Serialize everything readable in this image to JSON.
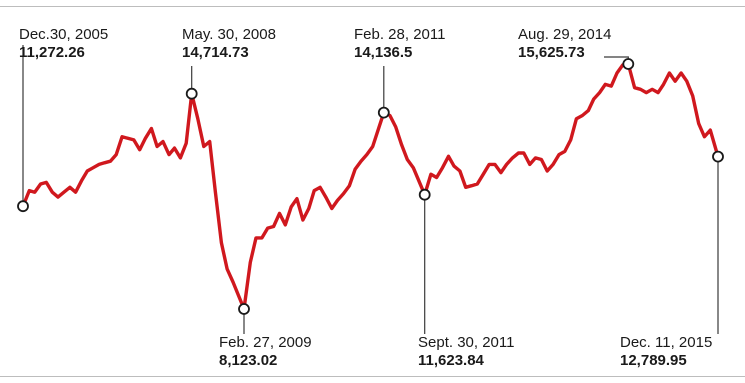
{
  "chart_data": {
    "type": "line",
    "title": "",
    "xlabel": "",
    "ylabel": "",
    "x_range": [
      "2005-12-30",
      "2015-12-11"
    ],
    "grid": false,
    "series": [
      {
        "color": "#d0181e",
        "points": [
          [
            "2005-12-30",
            11272.26
          ],
          [
            "2006-02-01",
            11750
          ],
          [
            "2006-03-01",
            11700
          ],
          [
            "2006-04-01",
            11950
          ],
          [
            "2006-05-01",
            12000
          ],
          [
            "2006-06-01",
            11700
          ],
          [
            "2006-07-01",
            11550
          ],
          [
            "2006-08-01",
            11700
          ],
          [
            "2006-09-01",
            11850
          ],
          [
            "2006-10-01",
            11700
          ],
          [
            "2006-11-01",
            12050
          ],
          [
            "2006-12-01",
            12350
          ],
          [
            "2007-01-01",
            12450
          ],
          [
            "2007-02-01",
            12550
          ],
          [
            "2007-03-01",
            12600
          ],
          [
            "2007-04-01",
            12650
          ],
          [
            "2007-05-01",
            12850
          ],
          [
            "2007-06-01",
            13400
          ],
          [
            "2007-07-01",
            13350
          ],
          [
            "2007-08-01",
            13300
          ],
          [
            "2007-09-01",
            13000
          ],
          [
            "2007-10-01",
            13350
          ],
          [
            "2007-11-01",
            13650
          ],
          [
            "2007-12-01",
            13100
          ],
          [
            "2008-01-01",
            13250
          ],
          [
            "2008-02-01",
            12850
          ],
          [
            "2008-03-01",
            13050
          ],
          [
            "2008-04-01",
            12750
          ],
          [
            "2008-05-01",
            13200
          ],
          [
            "2008-05-30",
            14714.73
          ],
          [
            "2008-07-01",
            13950
          ],
          [
            "2008-08-01",
            13100
          ],
          [
            "2008-09-01",
            13250
          ],
          [
            "2008-10-01",
            11700
          ],
          [
            "2008-11-01",
            10150
          ],
          [
            "2008-12-01",
            9350
          ],
          [
            "2009-01-01",
            8950
          ],
          [
            "2009-02-27",
            8123.02
          ],
          [
            "2009-04-01",
            9550
          ],
          [
            "2009-05-01",
            10300
          ],
          [
            "2009-06-01",
            10300
          ],
          [
            "2009-07-01",
            10600
          ],
          [
            "2009-08-01",
            10650
          ],
          [
            "2009-09-01",
            11050
          ],
          [
            "2009-10-01",
            10700
          ],
          [
            "2009-11-01",
            11250
          ],
          [
            "2009-12-01",
            11500
          ],
          [
            "2010-01-01",
            10850
          ],
          [
            "2010-02-01",
            11200
          ],
          [
            "2010-03-01",
            11750
          ],
          [
            "2010-04-01",
            11850
          ],
          [
            "2010-05-01",
            11550
          ],
          [
            "2010-06-01",
            11200
          ],
          [
            "2010-07-01",
            11450
          ],
          [
            "2010-08-01",
            11650
          ],
          [
            "2010-09-01",
            11900
          ],
          [
            "2010-10-01",
            12400
          ],
          [
            "2010-11-01",
            12650
          ],
          [
            "2010-12-01",
            12850
          ],
          [
            "2011-01-01",
            13100
          ],
          [
            "2011-02-28",
            14136.5
          ],
          [
            "2011-04-01",
            14050
          ],
          [
            "2011-05-01",
            13700
          ],
          [
            "2011-06-01",
            13150
          ],
          [
            "2011-07-01",
            12700
          ],
          [
            "2011-08-01",
            12450
          ],
          [
            "2011-09-30",
            11623.84
          ],
          [
            "2011-11-01",
            12250
          ],
          [
            "2011-12-01",
            12150
          ],
          [
            "2012-01-01",
            12450
          ],
          [
            "2012-02-01",
            12800
          ],
          [
            "2012-03-01",
            12500
          ],
          [
            "2012-04-01",
            12350
          ],
          [
            "2012-05-01",
            11850
          ],
          [
            "2012-06-01",
            11900
          ],
          [
            "2012-07-01",
            11950
          ],
          [
            "2012-08-01",
            12250
          ],
          [
            "2012-09-01",
            12550
          ],
          [
            "2012-10-01",
            12550
          ],
          [
            "2012-11-01",
            12300
          ],
          [
            "2012-12-01",
            12550
          ],
          [
            "2013-01-01",
            12750
          ],
          [
            "2013-02-01",
            12900
          ],
          [
            "2013-03-01",
            12900
          ],
          [
            "2013-04-01",
            12550
          ],
          [
            "2013-05-01",
            12750
          ],
          [
            "2013-06-01",
            12700
          ],
          [
            "2013-07-01",
            12350
          ],
          [
            "2013-08-01",
            12550
          ],
          [
            "2013-09-01",
            12850
          ],
          [
            "2013-10-01",
            12950
          ],
          [
            "2013-11-01",
            13300
          ],
          [
            "2013-12-01",
            13950
          ],
          [
            "2014-01-01",
            14050
          ],
          [
            "2014-02-01",
            14200
          ],
          [
            "2014-03-01",
            14550
          ],
          [
            "2014-04-01",
            14750
          ],
          [
            "2014-05-01",
            15000
          ],
          [
            "2014-06-01",
            14950
          ],
          [
            "2014-07-01",
            15350
          ],
          [
            "2014-08-01",
            15600
          ],
          [
            "2014-08-29",
            15625.73
          ],
          [
            "2014-10-01",
            14900
          ],
          [
            "2014-11-01",
            14850
          ],
          [
            "2014-12-01",
            14750
          ],
          [
            "2015-01-01",
            14850
          ],
          [
            "2015-02-01",
            14750
          ],
          [
            "2015-03-01",
            15000
          ],
          [
            "2015-04-01",
            15350
          ],
          [
            "2015-05-01",
            15100
          ],
          [
            "2015-06-01",
            15350
          ],
          [
            "2015-07-01",
            15100
          ],
          [
            "2015-08-01",
            14650
          ],
          [
            "2015-09-01",
            13800
          ],
          [
            "2015-10-01",
            13400
          ],
          [
            "2015-11-01",
            13600
          ],
          [
            "2015-12-11",
            12789.95
          ]
        ]
      }
    ],
    "annotations": [
      {
        "date": "2005-12-30",
        "label": "Dec.30, 2005",
        "value": "11,272.26",
        "numeric": 11272.26
      },
      {
        "date": "2008-05-30",
        "label": "May. 30, 2008",
        "value": "14,714.73",
        "numeric": 14714.73
      },
      {
        "date": "2009-02-27",
        "label": "Feb. 27, 2009",
        "value": "8,123.02",
        "numeric": 8123.02
      },
      {
        "date": "2011-02-28",
        "label": "Feb. 28, 2011",
        "value": "14,136.5",
        "numeric": 14136.5
      },
      {
        "date": "2011-09-30",
        "label": "Sept. 30, 2011",
        "value": "11,623.84",
        "numeric": 11623.84
      },
      {
        "date": "2014-08-29",
        "label": "Aug. 29, 2014",
        "value": "15,625.73",
        "numeric": 15625.73
      },
      {
        "date": "2015-12-11",
        "label": "Dec. 11, 2015",
        "value": "12,789.95",
        "numeric": 12789.95
      }
    ]
  }
}
